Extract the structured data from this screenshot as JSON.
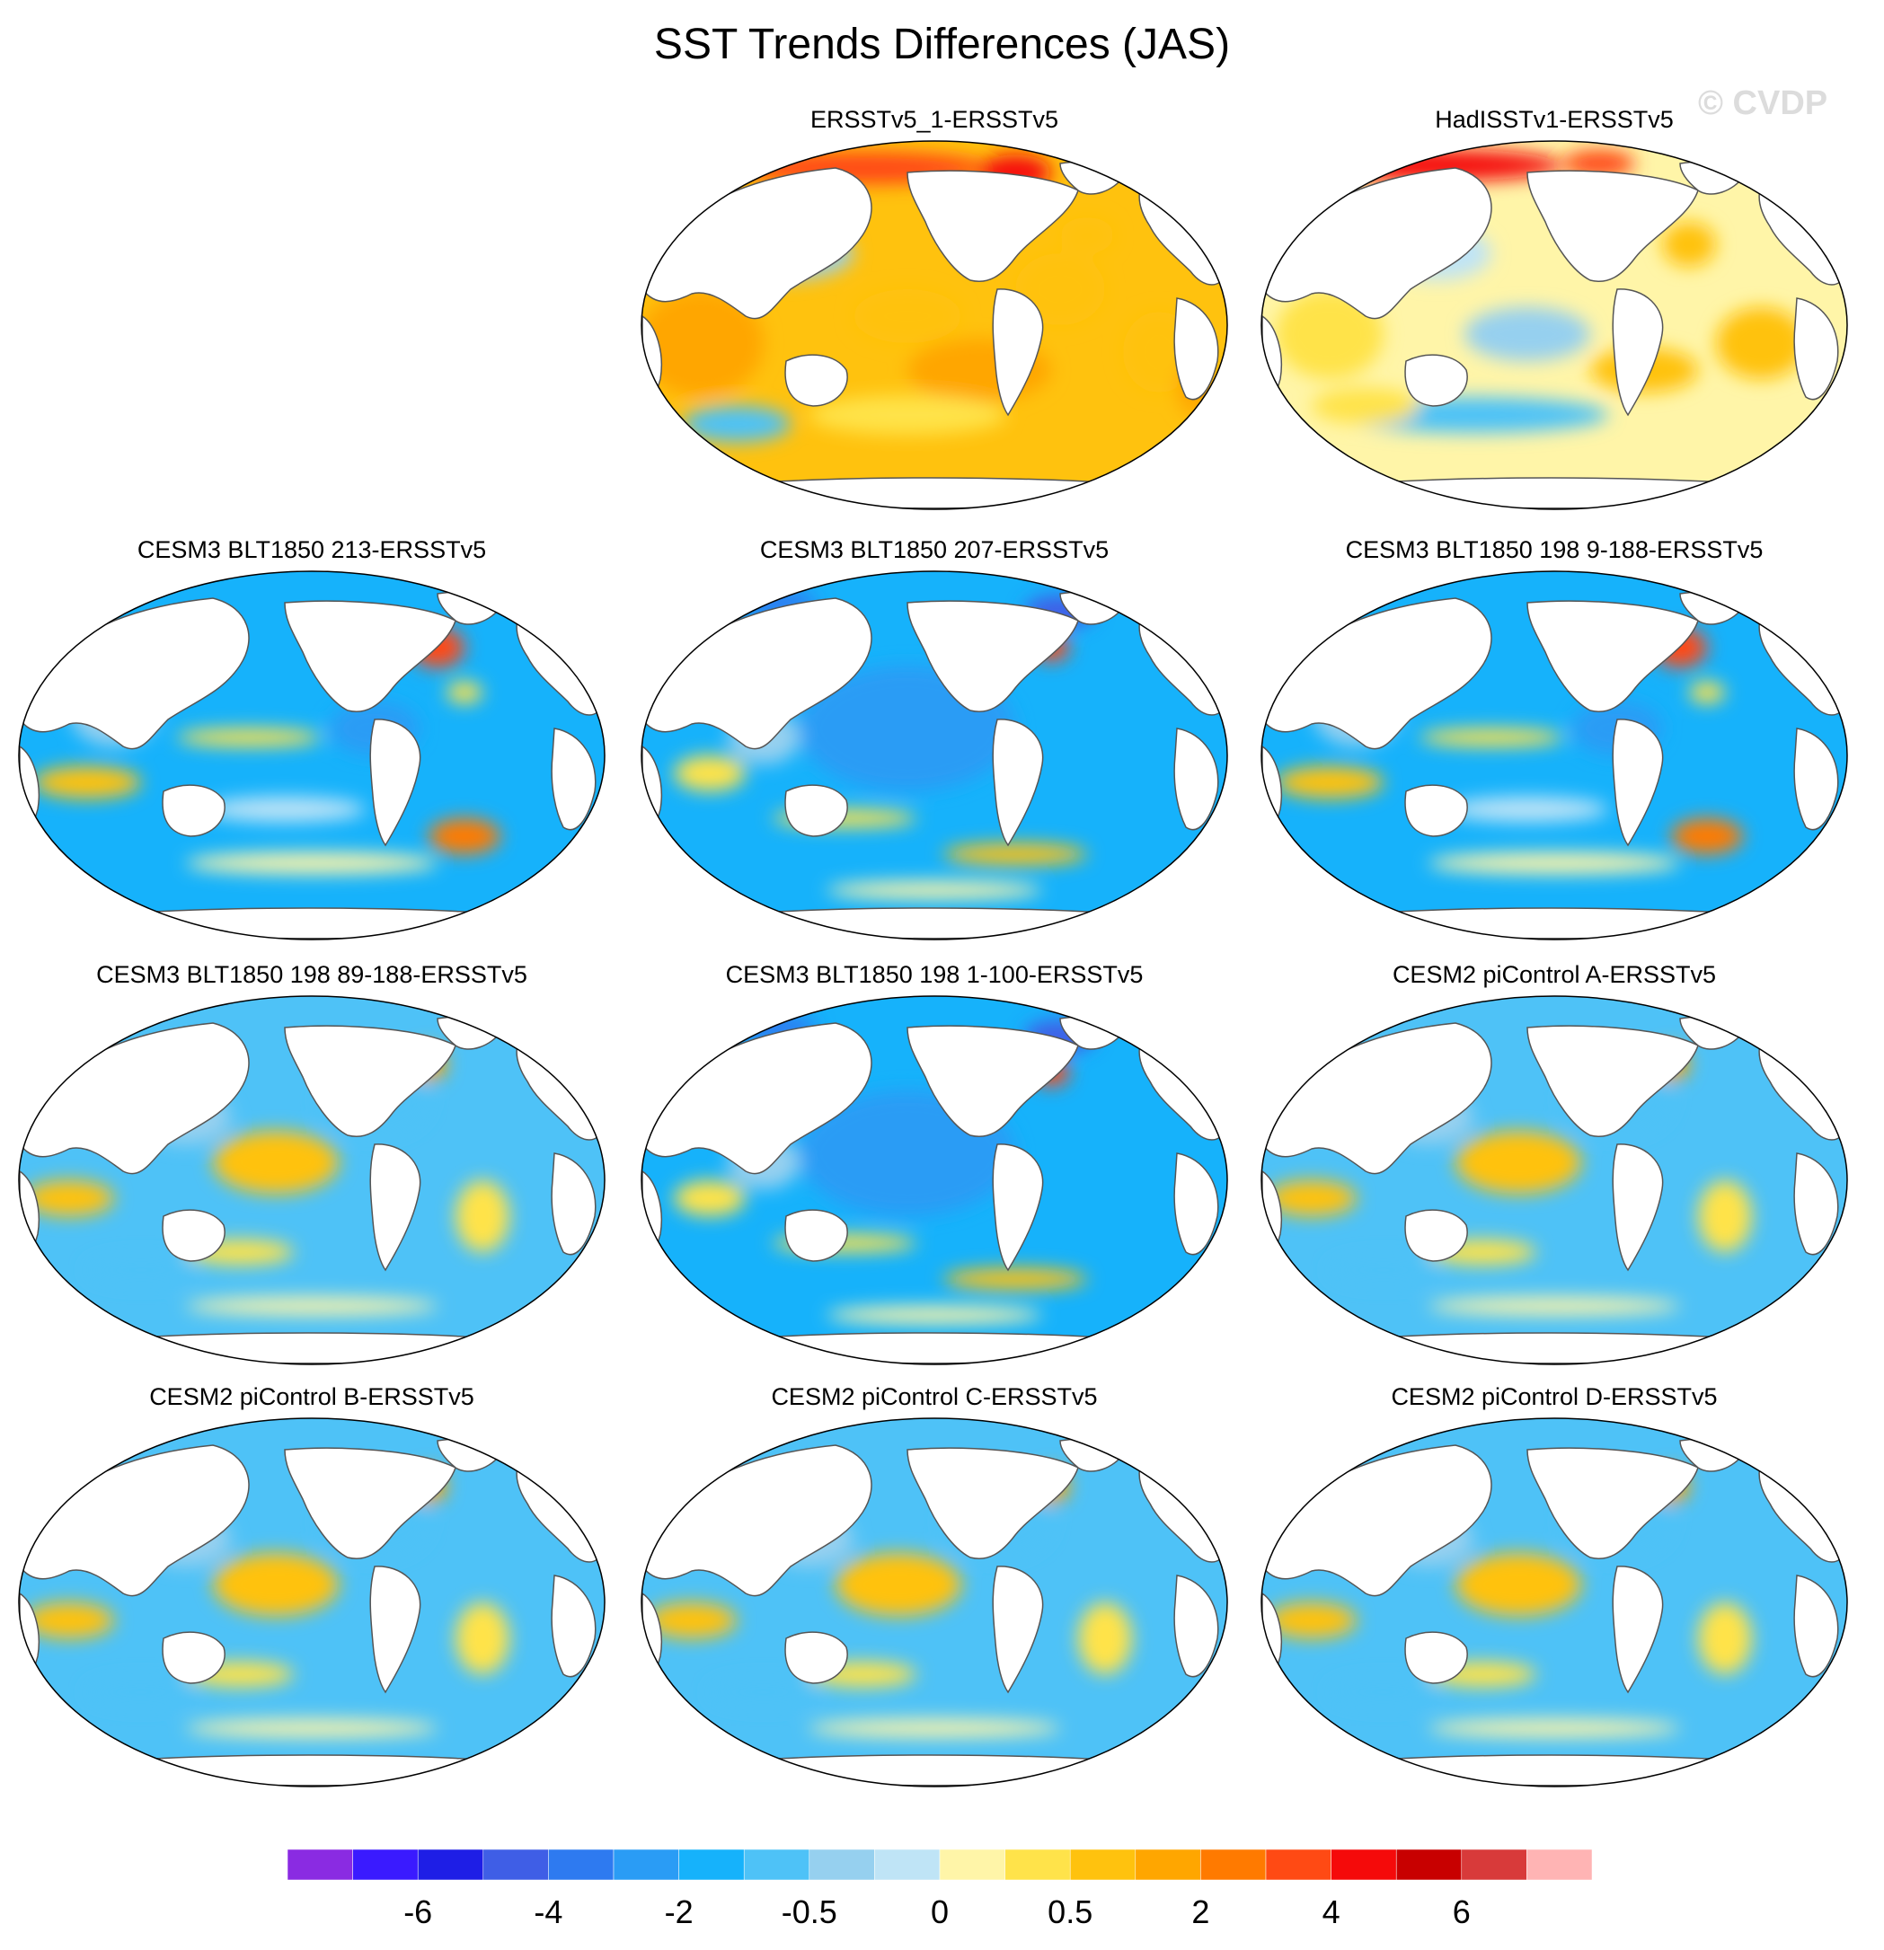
{
  "title": "SST Trends Differences (JAS)",
  "watermark": "© CVDP",
  "colors": {
    "land": "#ffffff",
    "coast": "#555555",
    "palette": [
      "#8a2be2",
      "#3a1aff",
      "#1e1ee6",
      "#3f5ee6",
      "#2e7af0",
      "#2a9cf5",
      "#16b2fb",
      "#4ec2f7",
      "#96d0ef",
      "#bfe4f6",
      "#fff5a8",
      "#ffe34a",
      "#ffc20e",
      "#ffa600",
      "#ff7a00",
      "#ff4a14",
      "#f50a0a",
      "#c80000",
      "#d83a3a",
      "#ffb4b4"
    ]
  },
  "colorbar": {
    "labels": [
      "-6",
      "-4",
      "-2",
      "-0.5",
      "0",
      "0.5",
      "2",
      "4",
      "6"
    ]
  },
  "panels": [
    {
      "id": "p1",
      "title": "ERSSTv5_1-ERSSTv5",
      "pattern": "warm"
    },
    {
      "id": "p2",
      "title": "HadISSTv1-ERSSTv5",
      "pattern": "mixed"
    },
    {
      "id": "p3",
      "title": "CESM3 BLT1850 213-ERSSTv5",
      "pattern": "cool"
    },
    {
      "id": "p4",
      "title": "CESM3 BLT1850 207-ERSSTv5",
      "pattern": "cold"
    },
    {
      "id": "p5",
      "title": "CESM3 BLT1850 198 9-188-ERSSTv5",
      "pattern": "cool"
    },
    {
      "id": "p6",
      "title": "CESM3 BLT1850 198 89-188-ERSSTv5",
      "pattern": "coolwarm"
    },
    {
      "id": "p7",
      "title": "CESM3 BLT1850 198 1-100-ERSSTv5",
      "pattern": "cold"
    },
    {
      "id": "p8",
      "title": "CESM2 piControl A-ERSSTv5",
      "pattern": "coolwarm"
    },
    {
      "id": "p9",
      "title": "CESM2 piControl B-ERSSTv5",
      "pattern": "coolwarm"
    },
    {
      "id": "p10",
      "title": "CESM2 piControl C-ERSSTv5",
      "pattern": "coolwarm"
    },
    {
      "id": "p11",
      "title": "CESM2 piControl D-ERSSTv5",
      "pattern": "coolwarm"
    }
  ]
}
